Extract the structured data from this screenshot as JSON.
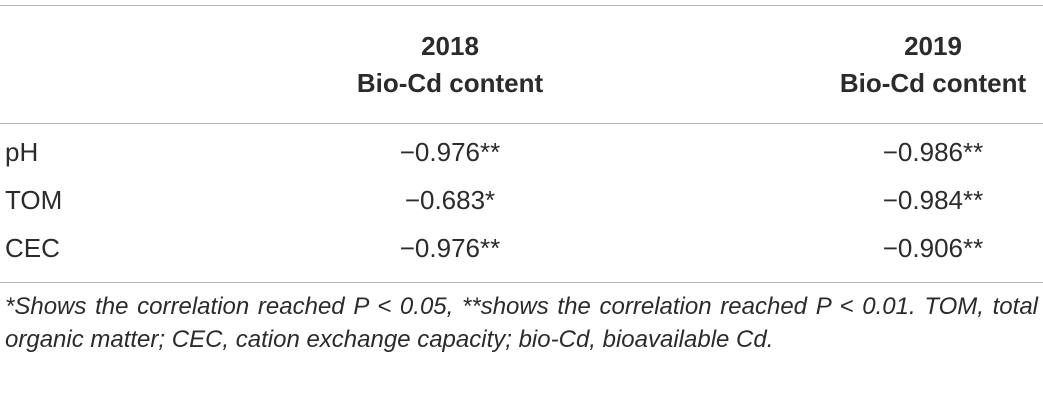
{
  "table": {
    "columns": [
      {
        "year": "2018",
        "label": "Bio-Cd content"
      },
      {
        "year": "2019",
        "label": "Bio-Cd content"
      }
    ],
    "rows": [
      {
        "label": "pH",
        "values": [
          "−0.976**",
          "−0.986**"
        ]
      },
      {
        "label": "TOM",
        "values": [
          "−0.683*",
          "−0.984**"
        ]
      },
      {
        "label": "CEC",
        "values": [
          "−0.976**",
          "−0.906**"
        ]
      }
    ]
  },
  "footnote": "*Shows the correlation reached P < 0.05, **shows the correlation reached P < 0.01. TOM, total organic matter; CEC, cation exchange capacity; bio-Cd, bioavailable Cd."
}
